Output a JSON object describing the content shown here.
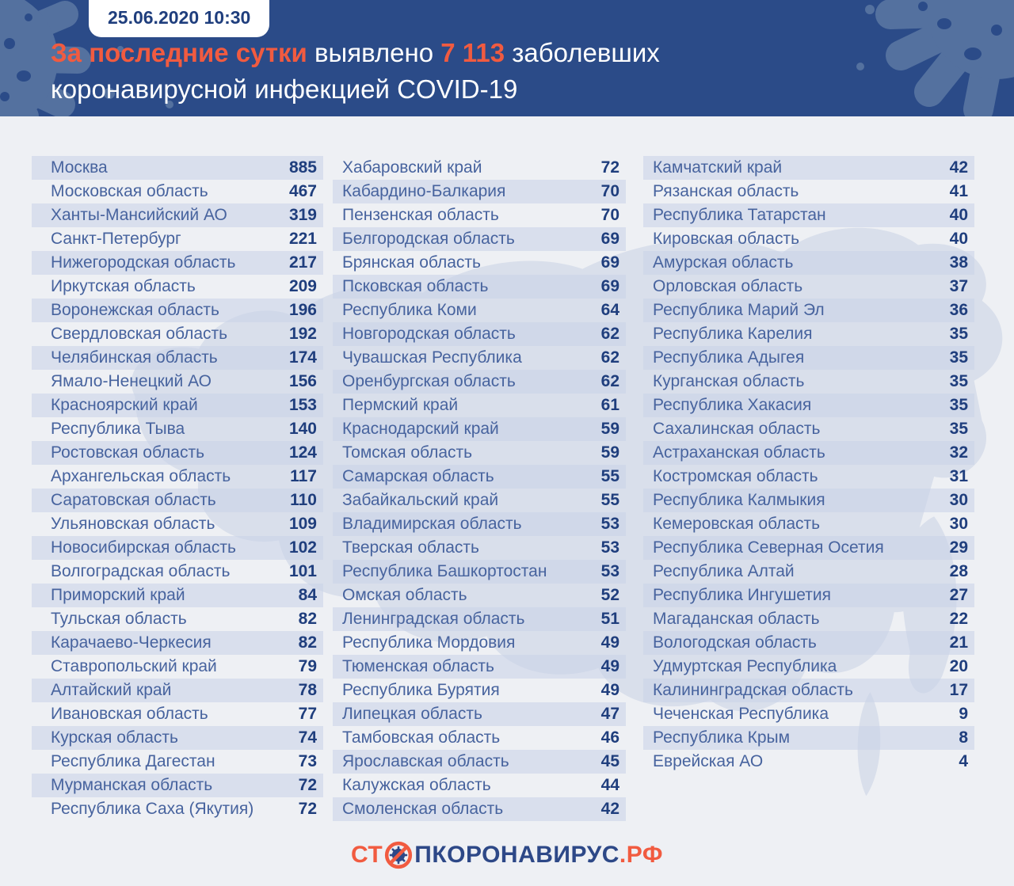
{
  "header": {
    "date_badge": "25.06.2020 10:30",
    "title": {
      "accent1": "За последние сутки",
      "mid": " выявлено ",
      "accent2": "7 113",
      "tail": " заболевших",
      "line2": "коронавирусной инфекцией COVID-19"
    }
  },
  "footer": {
    "logo_prefix": "СТ",
    "logo_icon": "no-virus-icon",
    "logo_main": "ПКОРОНАВИРУС",
    "logo_suffix": ".РФ"
  },
  "colors": {
    "header_bg": "#2b4b88",
    "header_decor": "#54719f",
    "accent_orange": "#f15b40",
    "number_navy": "#1f3e7d",
    "region_blue": "#47639e",
    "body_bg": "#eef0f4",
    "row_stripe": "#dae0ed",
    "map_silhouette": "#d9dfeb"
  },
  "chart_data": {
    "type": "table",
    "title": "За последние сутки выявлено 7 113 заболевших коронавирусной инфекцией COVID-19",
    "timestamp": "25.06.2020 10:30",
    "total_new_cases": 7113,
    "columns": [
      {
        "rows": [
          {
            "name": "Москва",
            "value": 885
          },
          {
            "name": "Московская область",
            "value": 467
          },
          {
            "name": "Ханты-Мансийский АО",
            "value": 319
          },
          {
            "name": "Санкт-Петербург",
            "value": 221
          },
          {
            "name": "Нижегородская область",
            "value": 217
          },
          {
            "name": "Иркутская область",
            "value": 209
          },
          {
            "name": "Воронежская область",
            "value": 196
          },
          {
            "name": "Свердловская область",
            "value": 192
          },
          {
            "name": "Челябинская область",
            "value": 174
          },
          {
            "name": "Ямало-Ненецкий АО",
            "value": 156
          },
          {
            "name": "Красноярский край",
            "value": 153
          },
          {
            "name": "Республика Тыва",
            "value": 140
          },
          {
            "name": "Ростовская область",
            "value": 124
          },
          {
            "name": "Архангельская область",
            "value": 117
          },
          {
            "name": "Саратовская область",
            "value": 110
          },
          {
            "name": "Ульяновская область",
            "value": 109
          },
          {
            "name": "Новосибирская область",
            "value": 102
          },
          {
            "name": "Волгоградская область",
            "value": 101
          },
          {
            "name": "Приморский край",
            "value": 84
          },
          {
            "name": "Тульская область",
            "value": 82
          },
          {
            "name": "Карачаево-Черкесия",
            "value": 82
          },
          {
            "name": "Ставропольский край",
            "value": 79
          },
          {
            "name": "Алтайский край",
            "value": 78
          },
          {
            "name": "Ивановская область",
            "value": 77
          },
          {
            "name": "Курская область",
            "value": 74
          },
          {
            "name": "Республика Дагестан",
            "value": 73
          },
          {
            "name": "Мурманская область",
            "value": 72
          },
          {
            "name": "Республика Саха (Якутия)",
            "value": 72
          }
        ]
      },
      {
        "rows": [
          {
            "name": "Хабаровский край",
            "value": 72
          },
          {
            "name": "Кабардино-Балкария",
            "value": 70
          },
          {
            "name": "Пензенская область",
            "value": 70
          },
          {
            "name": "Белгородская область",
            "value": 69
          },
          {
            "name": "Брянская область",
            "value": 69
          },
          {
            "name": "Псковская область",
            "value": 69
          },
          {
            "name": "Республика Коми",
            "value": 64
          },
          {
            "name": "Новгородская область",
            "value": 62
          },
          {
            "name": "Чувашская Республика",
            "value": 62
          },
          {
            "name": "Оренбургская область",
            "value": 62
          },
          {
            "name": "Пермский край",
            "value": 61
          },
          {
            "name": "Краснодарский край",
            "value": 59
          },
          {
            "name": "Томская область",
            "value": 59
          },
          {
            "name": "Самарская область",
            "value": 55
          },
          {
            "name": "Забайкальский край",
            "value": 55
          },
          {
            "name": "Владимирская область",
            "value": 53
          },
          {
            "name": "Тверская область",
            "value": 53
          },
          {
            "name": "Республика Башкортостан",
            "value": 53
          },
          {
            "name": "Омская область",
            "value": 52
          },
          {
            "name": "Ленинградская область",
            "value": 51
          },
          {
            "name": "Республика Мордовия",
            "value": 49
          },
          {
            "name": "Тюменская область",
            "value": 49
          },
          {
            "name": "Республика Бурятия",
            "value": 49
          },
          {
            "name": "Липецкая область",
            "value": 47
          },
          {
            "name": "Тамбовская область",
            "value": 46
          },
          {
            "name": "Ярославская область",
            "value": 45
          },
          {
            "name": "Калужская область",
            "value": 44
          },
          {
            "name": "Смоленская область",
            "value": 42
          }
        ]
      },
      {
        "rows": [
          {
            "name": "Камчатский край",
            "value": 42
          },
          {
            "name": "Рязанская область",
            "value": 41
          },
          {
            "name": "Республика Татарстан",
            "value": 40
          },
          {
            "name": "Кировская область",
            "value": 40
          },
          {
            "name": "Амурская область",
            "value": 38
          },
          {
            "name": "Орловская область",
            "value": 37
          },
          {
            "name": "Республика Марий Эл",
            "value": 36
          },
          {
            "name": "Республика Карелия",
            "value": 35
          },
          {
            "name": "Республика Адыгея",
            "value": 35
          },
          {
            "name": "Курганская область",
            "value": 35
          },
          {
            "name": "Республика Хакасия",
            "value": 35
          },
          {
            "name": "Сахалинская область",
            "value": 35
          },
          {
            "name": "Астраханская область",
            "value": 32
          },
          {
            "name": "Костромская область",
            "value": 31
          },
          {
            "name": "Республика Калмыкия",
            "value": 30
          },
          {
            "name": "Кемеровская область",
            "value": 30
          },
          {
            "name": "Республика Северная Осетия",
            "value": 29
          },
          {
            "name": "Республика Алтай",
            "value": 28
          },
          {
            "name": "Республика Ингушетия",
            "value": 27
          },
          {
            "name": "Магаданская область",
            "value": 22
          },
          {
            "name": "Вологодская область",
            "value": 21
          },
          {
            "name": "Удмуртская Республика",
            "value": 20
          },
          {
            "name": "Калининградская область",
            "value": 17
          },
          {
            "name": "Чеченская Республика",
            "value": 9
          },
          {
            "name": "Республика Крым",
            "value": 8
          },
          {
            "name": "Еврейская АО",
            "value": 4
          }
        ]
      }
    ]
  }
}
